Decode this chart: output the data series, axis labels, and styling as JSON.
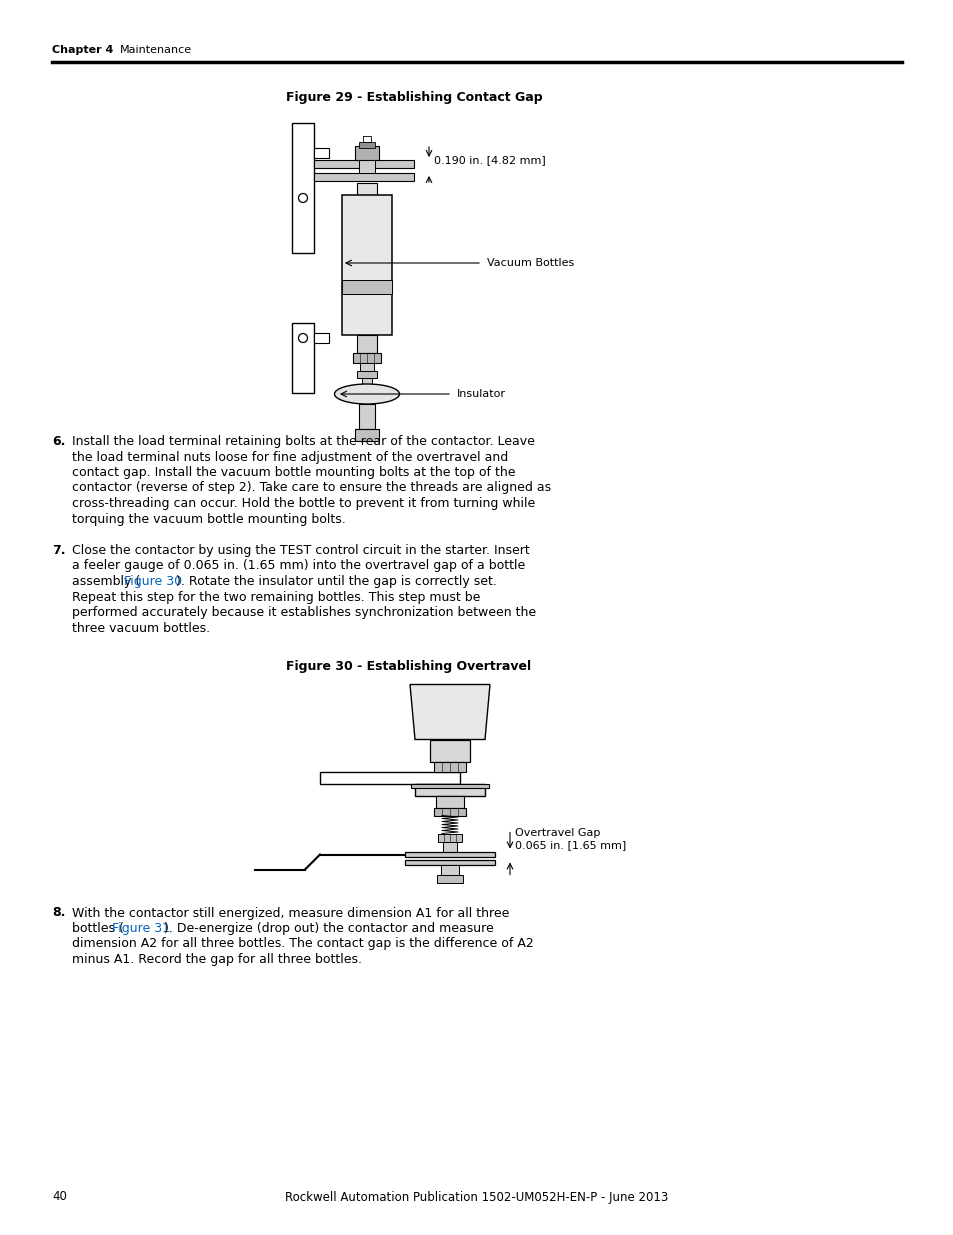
{
  "fig29_title": "Figure 29 - Establishing Contact Gap",
  "fig29_label1": "0.190 in. [4.82 mm]",
  "fig29_label2": "Vacuum Bottles",
  "fig29_label3": "Insulator",
  "fig30_title": "Figure 30 - Establishing Overtravel",
  "fig30_label1_line1": "Overtravel Gap",
  "fig30_label1_line2": "0.065 in. [1.65 mm]",
  "step6_lines": [
    "Install the load terminal retaining bolts at the rear of the contactor. Leave",
    "the load terminal nuts loose for fine adjustment of the overtravel and",
    "contact gap. Install the vacuum bottle mounting bolts at the top of the",
    "contactor (reverse of step 2). Take care to ensure the threads are aligned as",
    "cross-threading can occur. Hold the bottle to prevent it from turning while",
    "torquing the vacuum bottle mounting bolts."
  ],
  "step7_lines_a": [
    "Close the contactor by using the TEST control circuit in the starter. Insert",
    "a feeler gauge of 0.065 in. (1.65 mm) into the overtravel gap of a bottle"
  ],
  "step7_link_pre": "assembly (",
  "step7_link_text": "Figure 30",
  "step7_link_post": "). Rotate the insulator until the gap is correctly set.",
  "step7_lines_b": [
    "Repeat this step for the two remaining bottles. This step must be",
    "performed accurately because it establishes synchronization between the",
    "three vacuum bottles."
  ],
  "step8_line1": "With the contactor still energized, measure dimension A1 for all three",
  "step8_link_pre": "bottles (",
  "step8_link_text": "Figure 31",
  "step8_link_post": "). De-energize (drop out) the contactor and measure",
  "step8_lines_b": [
    "dimension A2 for all three bottles. The contact gap is the difference of A2",
    "minus A1. Record the gap for all three bottles."
  ],
  "header_chapter": "Chapter 4",
  "header_section": "Maintenance",
  "footer_page": "40",
  "footer_pub": "Rockwell Automation Publication 1502-UM052H-EN-P - June 2013",
  "bg_color": "#ffffff",
  "link_color": "#0563C1"
}
